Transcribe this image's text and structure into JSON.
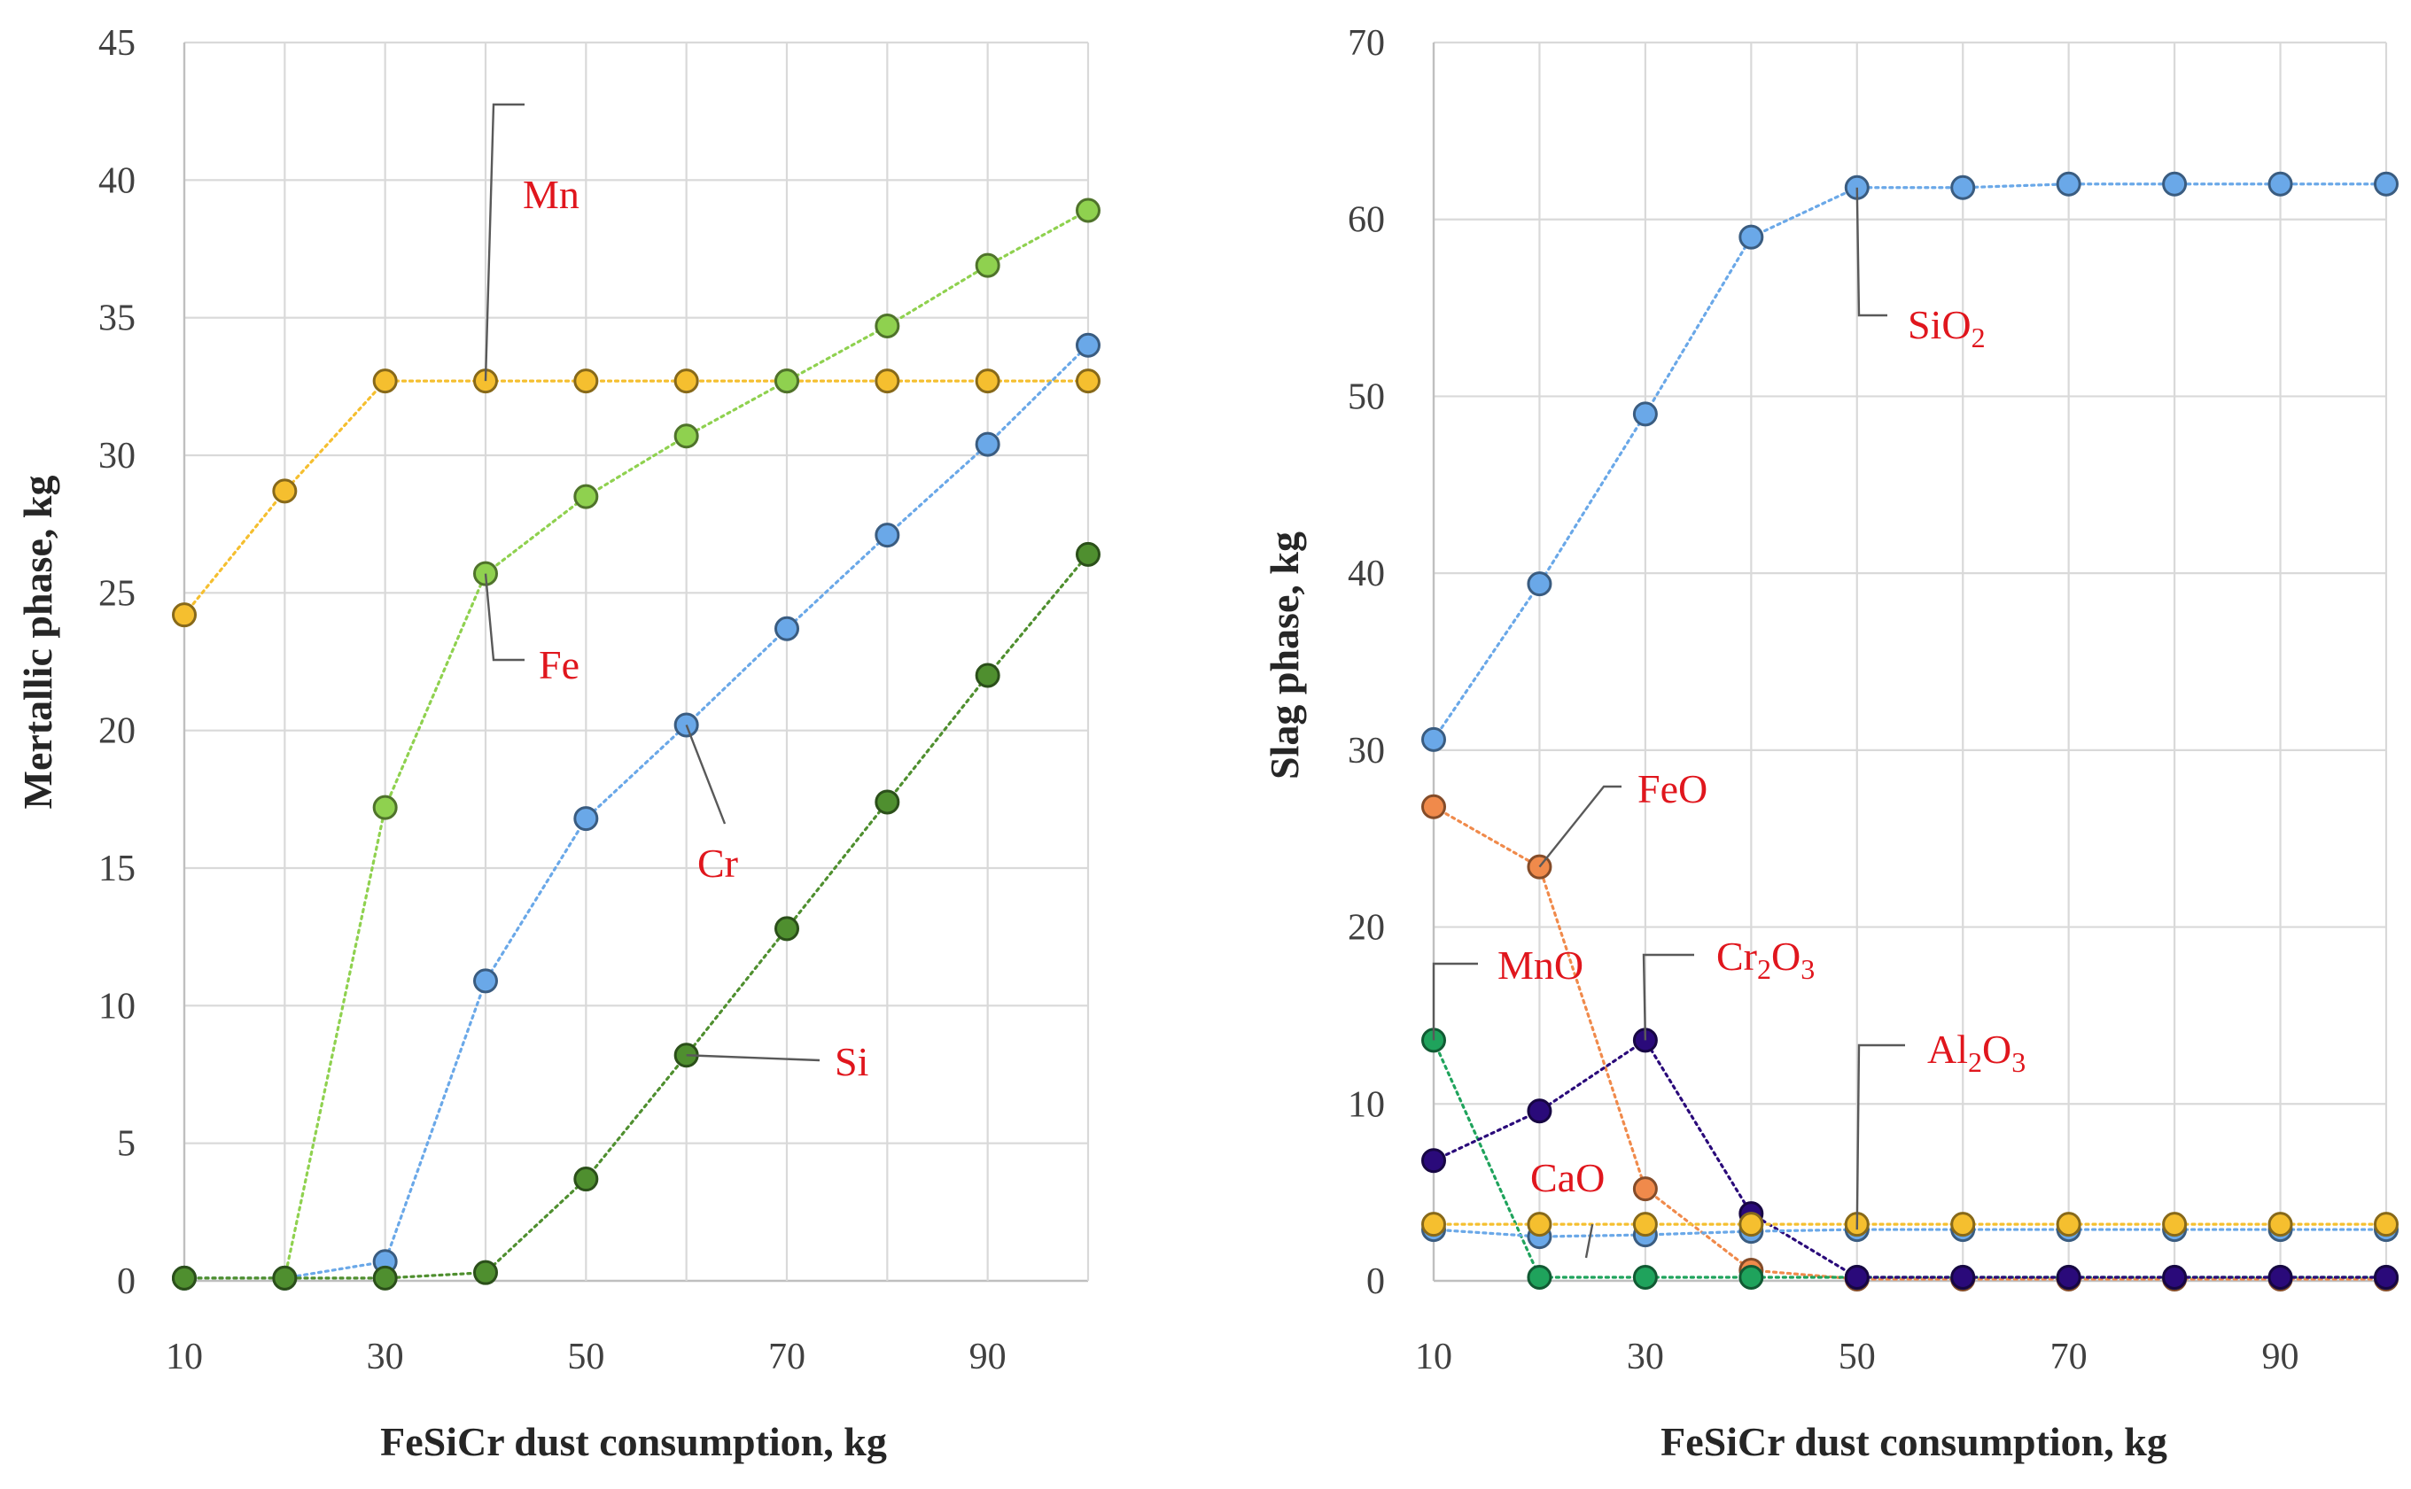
{
  "chart_data": [
    {
      "type": "line",
      "xlabel": "FeSiCr dust consumption, kg",
      "ylabel": "Mertallic phase, kg",
      "ylim": [
        0,
        45
      ],
      "xlim": [
        10,
        100
      ],
      "yticks": [
        "0",
        "5",
        "10",
        "15",
        "20",
        "25",
        "30",
        "35",
        "40",
        "45"
      ],
      "xticks": [
        "10",
        "30",
        "50",
        "70",
        "90"
      ],
      "x": [
        10,
        20,
        30,
        40,
        50,
        60,
        70,
        80,
        90,
        100
      ],
      "grid": true,
      "series": [
        {
          "name": "Mn",
          "color": "#f5bf2f",
          "values": [
            24.2,
            28.7,
            32.7,
            32.7,
            32.7,
            32.7,
            32.7,
            32.7,
            32.7,
            32.7
          ]
        },
        {
          "name": "Fe",
          "color": "#8fd14f",
          "values": [
            0.1,
            0.1,
            17.2,
            25.7,
            28.5,
            30.7,
            32.7,
            34.7,
            36.9,
            38.9
          ]
        },
        {
          "name": "Cr",
          "color": "#6aa8e8",
          "values": [
            0.1,
            0.1,
            0.7,
            10.9,
            16.8,
            20.2,
            23.7,
            27.1,
            30.4,
            34.0
          ]
        },
        {
          "name": "Si",
          "color": "#4f8f2f",
          "values": [
            0.1,
            0.1,
            0.1,
            0.3,
            3.7,
            8.2,
            12.8,
            17.4,
            22.0,
            26.4
          ]
        }
      ],
      "annotations": [
        {
          "text": "Mn",
          "series": "Mn",
          "point_x": 40
        },
        {
          "text": "Fe",
          "series": "Fe",
          "point_x": 40
        },
        {
          "text": "Cr",
          "series": "Cr",
          "point_x": 60
        },
        {
          "text": "Si",
          "series": "Si",
          "point_x": 60
        }
      ]
    },
    {
      "type": "line",
      "xlabel": "FeSiCr dust consumption, kg",
      "ylabel": "Slag phase, kg",
      "ylim": [
        0,
        70
      ],
      "xlim": [
        10,
        100
      ],
      "yticks": [
        "0",
        "10",
        "20",
        "30",
        "40",
        "50",
        "60",
        "70"
      ],
      "xticks": [
        "10",
        "30",
        "50",
        "70",
        "90"
      ],
      "x": [
        10,
        20,
        30,
        40,
        50,
        60,
        70,
        80,
        90,
        100
      ],
      "grid": true,
      "series": [
        {
          "name": "SiO2",
          "color": "#6aa8e8",
          "values": [
            30.6,
            39.4,
            49.0,
            59.0,
            61.8,
            61.8,
            62.0,
            62.0,
            62.0,
            62.0
          ]
        },
        {
          "name": "FeO",
          "color": "#f08a4b",
          "values": [
            26.8,
            23.4,
            5.2,
            0.6,
            0.1,
            0.1,
            0.1,
            0.1,
            0.1,
            0.1
          ]
        },
        {
          "name": "MnO",
          "color": "#1fa35c",
          "values": [
            13.6,
            0.2,
            0.2,
            0.2,
            0.2,
            0.2,
            0.2,
            0.2,
            0.2,
            0.2
          ]
        },
        {
          "name": "Cr2O3",
          "color": "#2a0a7a",
          "values": [
            6.8,
            9.6,
            13.6,
            3.8,
            0.2,
            0.2,
            0.2,
            0.2,
            0.2,
            0.2
          ]
        },
        {
          "name": "Al2O3",
          "color": "#6aa8e8",
          "values": [
            2.9,
            2.5,
            2.6,
            2.8,
            2.9,
            2.9,
            2.9,
            2.9,
            2.9,
            2.9
          ]
        },
        {
          "name": "CaO",
          "color": "#f5bf2f",
          "values": [
            3.2,
            3.2,
            3.2,
            3.2,
            3.2,
            3.2,
            3.2,
            3.2,
            3.2,
            3.2
          ]
        }
      ],
      "annotations": [
        {
          "text": "SiO",
          "sub": "2",
          "tail": "",
          "series": "SiO2",
          "point_x": 50
        },
        {
          "text": "FeO",
          "sub": "",
          "tail": "",
          "series": "FeO",
          "point_x": 20
        },
        {
          "text": "MnO",
          "sub": "",
          "tail": "",
          "series": "MnO",
          "point_x": 10
        },
        {
          "text": "Cr",
          "sub": "2",
          "tail": "O",
          "sub2": "3",
          "series": "Cr2O3",
          "point_x": 30
        },
        {
          "text": "Al",
          "sub": "2",
          "tail": "O",
          "sub2": "3",
          "series": "Al2O3",
          "point_x": 50
        },
        {
          "text": "CaO",
          "sub": "",
          "tail": "",
          "series": "CaO",
          "point_x": 25
        }
      ]
    }
  ]
}
